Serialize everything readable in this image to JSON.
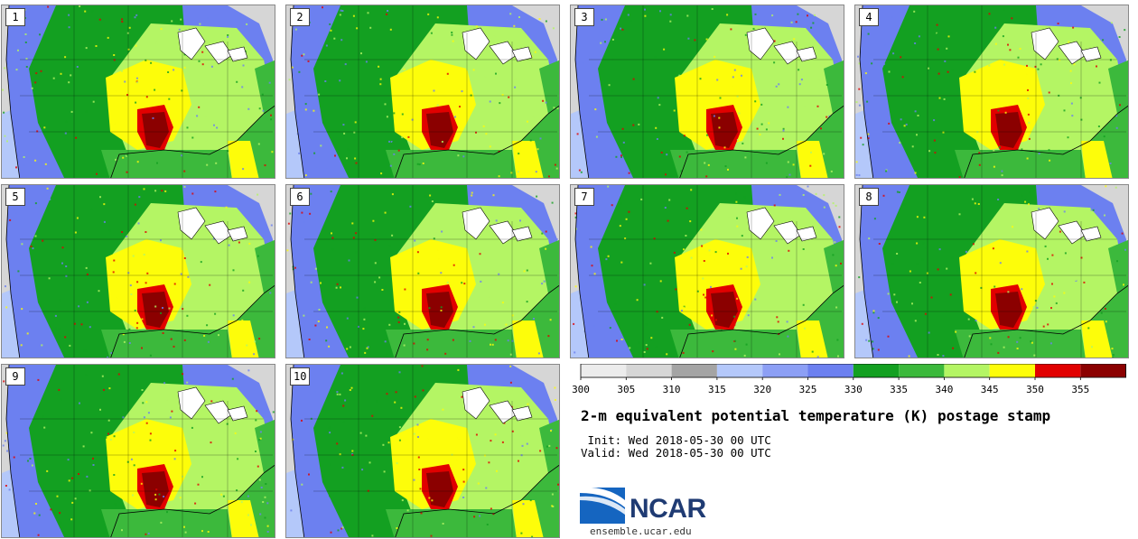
{
  "title": "2-m equivalent potential temperature (K) postage stamp",
  "init_line": " Init: Wed 2018-05-30 00 UTC",
  "valid_line": "Valid: Wed 2018-05-30 00 UTC",
  "logo": {
    "text": "NCAR",
    "site": "ensemble.ucar.edu"
  },
  "members": [
    "1",
    "2",
    "3",
    "4",
    "5",
    "6",
    "7",
    "8",
    "9",
    "10"
  ],
  "colorbar": {
    "ticks": [
      "300",
      "305",
      "310",
      "315",
      "320",
      "325",
      "330",
      "335",
      "340",
      "345",
      "350",
      "355"
    ],
    "colors": [
      "#ececec",
      "#d6d6d6",
      "#a4a4a4",
      "#b4c8fa",
      "#8c9ff5",
      "#6c80f0",
      "#13a021",
      "#3cb93c",
      "#b4f564",
      "#fdfd0a",
      "#e10000",
      "#8b0000"
    ]
  },
  "map_colors": {
    "ocean_cool": "#b4c8fa",
    "ocean_warm_north": "#d6d6d6",
    "gulf": "#3cb93c",
    "atlantic": "#3cb93c",
    "west": "#6c80f0",
    "plains": "#13a021",
    "midwest": "#b4f564",
    "south": "#fdfd0a",
    "hot": "#e10000",
    "hottest": "#8b0000",
    "lakes": "#ffffff"
  }
}
